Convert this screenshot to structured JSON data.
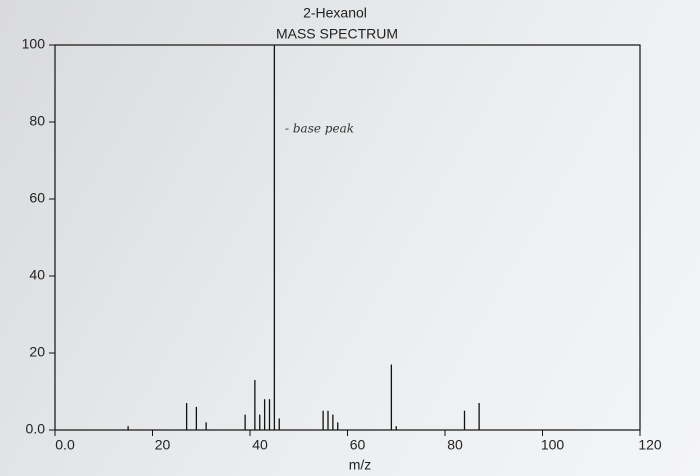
{
  "chart_data": {
    "type": "bar",
    "title": "2-Hexanol",
    "subtitle": "MASS SPECTRUM",
    "x_label": "m/z",
    "annotation": "- base peak",
    "x": [
      15,
      27,
      29,
      31,
      39,
      41,
      42,
      43,
      44,
      45,
      46,
      55,
      56,
      57,
      58,
      69,
      70,
      84,
      87
    ],
    "values": [
      1,
      7,
      6,
      2,
      4,
      13,
      4,
      8,
      8,
      100,
      3,
      5,
      5,
      4,
      2,
      17,
      1,
      5,
      7
    ],
    "color": "#111111",
    "xlim": [
      0,
      120
    ],
    "xticks": [
      {
        "value": 0,
        "label": "0.0"
      },
      20,
      40,
      60,
      80,
      100,
      120
    ],
    "ylim": [
      0,
      100
    ],
    "yticks": [
      {
        "value": 0,
        "label": "0.0"
      },
      20,
      40,
      60,
      80,
      100
    ],
    "grid": false
  }
}
